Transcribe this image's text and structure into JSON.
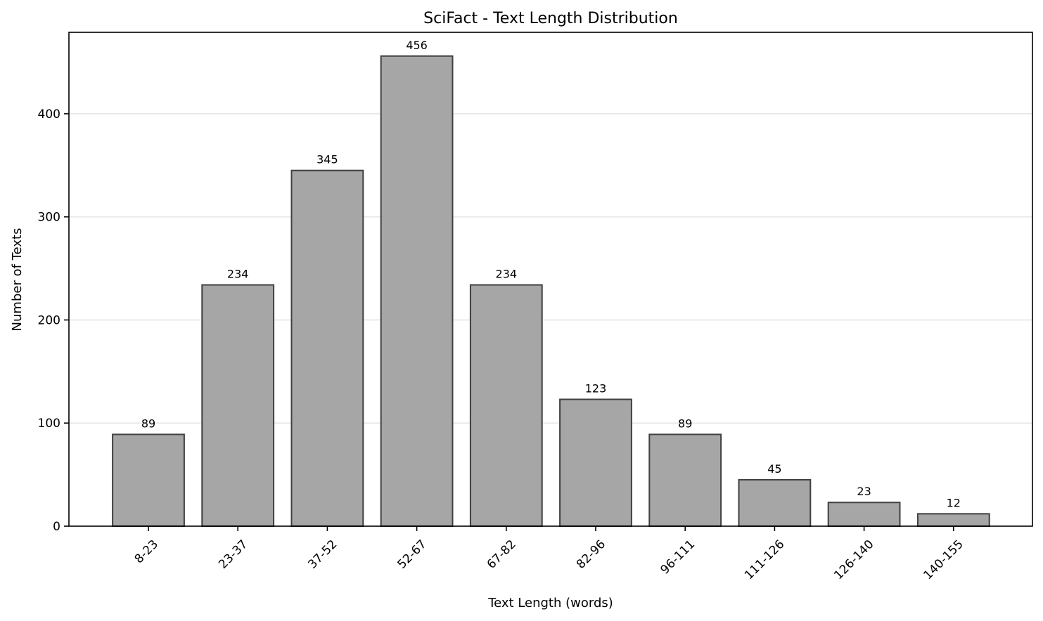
{
  "chart_data": {
    "type": "bar",
    "title": "SciFact - Text Length Distribution",
    "xlabel": "Text Length (words)",
    "ylabel": "Number of Texts",
    "categories": [
      "8-23",
      "23-37",
      "37-52",
      "52-67",
      "67-82",
      "82-96",
      "96-111",
      "111-126",
      "126-140",
      "140-155"
    ],
    "values": [
      89,
      234,
      345,
      456,
      234,
      123,
      89,
      45,
      23,
      12
    ],
    "ylim": [
      0,
      479
    ],
    "yticks": [
      0,
      100,
      200,
      300,
      400
    ],
    "grid": "y",
    "bar_color": "#a6a6a6",
    "bar_edge_color": "#404040",
    "grid_color": "#e6e6e6",
    "data_labels": true,
    "x_tick_rotation": 45
  }
}
